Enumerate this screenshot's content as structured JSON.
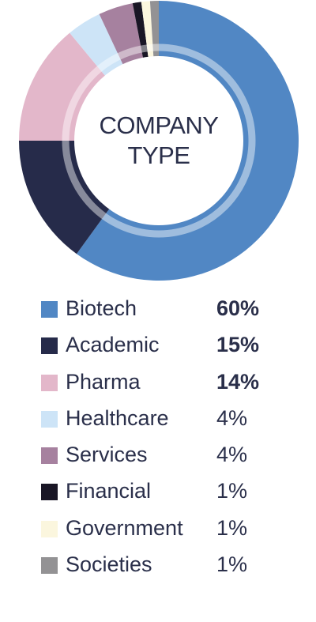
{
  "chart_data": {
    "type": "pie",
    "title": "COMPANY TYPE",
    "categories": [
      "Biotech",
      "Academic",
      "Pharma",
      "Healthcare",
      "Services",
      "Financial",
      "Government",
      "Societies"
    ],
    "values": [
      60,
      15,
      14,
      4,
      4,
      1,
      1,
      1
    ],
    "value_labels": [
      "60%",
      "15%",
      "14%",
      "4%",
      "4%",
      "1%",
      "1%",
      "1%"
    ],
    "colors": [
      "#5187c4",
      "#262b4a",
      "#e3b7ca",
      "#cde4f7",
      "#a6819f",
      "#191625",
      "#fbf6de",
      "#939294"
    ],
    "legend": "bottom",
    "style": "donut"
  }
}
